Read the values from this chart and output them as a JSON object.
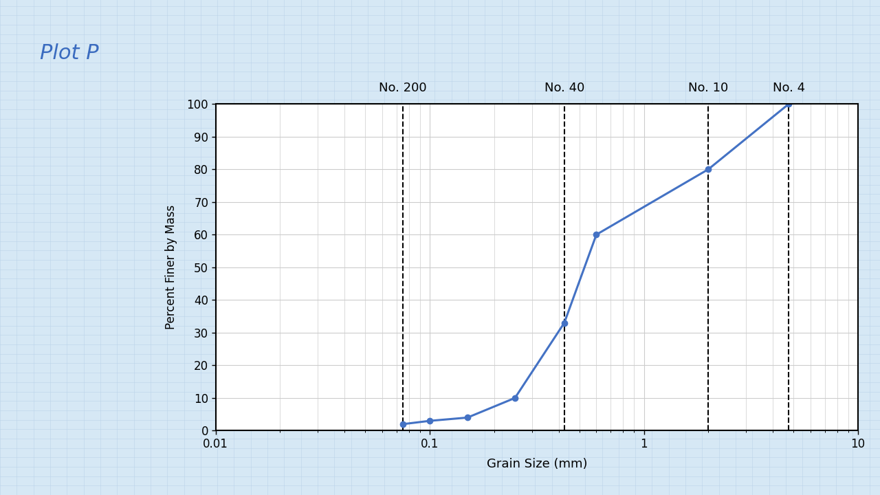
{
  "x_data": [
    0.075,
    0.1,
    0.15,
    0.25,
    0.425,
    0.6,
    2.0,
    4.75
  ],
  "y_data": [
    2,
    3,
    4,
    10,
    33,
    60,
    80,
    100
  ],
  "xlim": [
    0.01,
    10
  ],
  "ylim": [
    0,
    100
  ],
  "xlabel": "Grain Size (mm)",
  "ylabel": "Percent Finer by Mass",
  "yticks": [
    0,
    10,
    20,
    30,
    40,
    50,
    60,
    70,
    80,
    90,
    100
  ],
  "xtick_labels": [
    "0.01",
    "0.1",
    "1",
    "10"
  ],
  "xtick_vals": [
    0.01,
    0.1,
    1,
    10
  ],
  "sieve_lines": [
    0.075,
    0.425,
    2.0,
    4.75
  ],
  "sieve_labels": [
    "No. 200",
    "No. 40",
    "No. 10",
    "No. 4"
  ],
  "line_color": "#4472C4",
  "marker_color": "#4472C4",
  "plot_bg_color": "#ffffff",
  "grid_color": "#cccccc",
  "fig_bg_color": "#d6e8f5",
  "title": "Plot P",
  "title_color": "#3a6bbf",
  "xlabel_fontsize": 13,
  "ylabel_fontsize": 12,
  "tick_fontsize": 12,
  "sieve_fontsize": 13,
  "title_fontsize": 22
}
